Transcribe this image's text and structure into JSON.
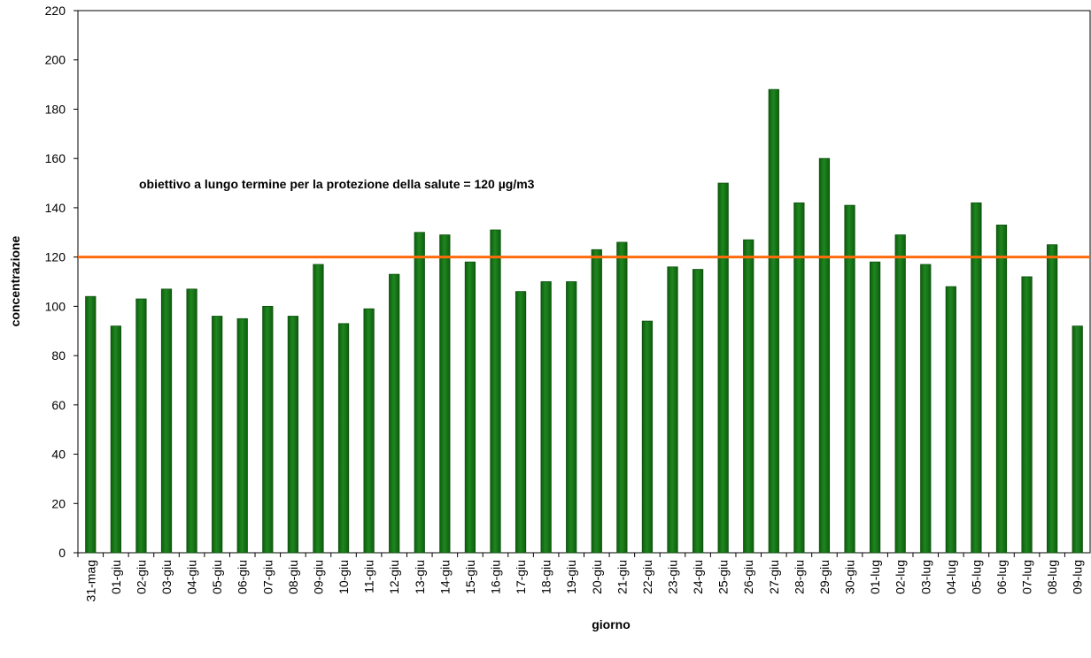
{
  "chart_data": {
    "type": "bar",
    "x_label": "giorno",
    "y_label": "concentrazione",
    "annotation": "obiettivo a lungo termine per la protezione della salute = 120 µg/m3",
    "threshold": 120,
    "threshold_color": "#ff6a0d",
    "color": "#1f861f",
    "categories": [
      "31-mag",
      "01-giu",
      "02-giu",
      "03-giu",
      "04-giu",
      "05-giu",
      "06-giu",
      "07-giu",
      "08-giu",
      "09-giu",
      "10-giu",
      "11-giu",
      "12-giu",
      "13-giu",
      "14-giu",
      "15-giu",
      "16-giu",
      "17-giu",
      "18-giu",
      "19-giu",
      "20-giu",
      "21-giu",
      "22-giu",
      "23-giu",
      "24-giu",
      "25-giu",
      "26-giu",
      "27-giu",
      "28-giu",
      "29-giu",
      "30-giu",
      "01-lug",
      "02-lug",
      "03-lug",
      "04-lug",
      "05-lug",
      "06-lug",
      "07-lug",
      "08-lug",
      "09-lug"
    ],
    "values": [
      104,
      92,
      103,
      107,
      107,
      96,
      95,
      100,
      96,
      117,
      93,
      99,
      113,
      130,
      129,
      118,
      131,
      106,
      110,
      110,
      123,
      126,
      94,
      116,
      115,
      150,
      127,
      188,
      142,
      160,
      141,
      118,
      129,
      117,
      108,
      142,
      133,
      112,
      125,
      92
    ],
    "ylim": [
      0,
      220
    ],
    "yticks": [
      0,
      20,
      40,
      60,
      80,
      100,
      120,
      140,
      160,
      180,
      200,
      220
    ],
    "grid": false
  }
}
